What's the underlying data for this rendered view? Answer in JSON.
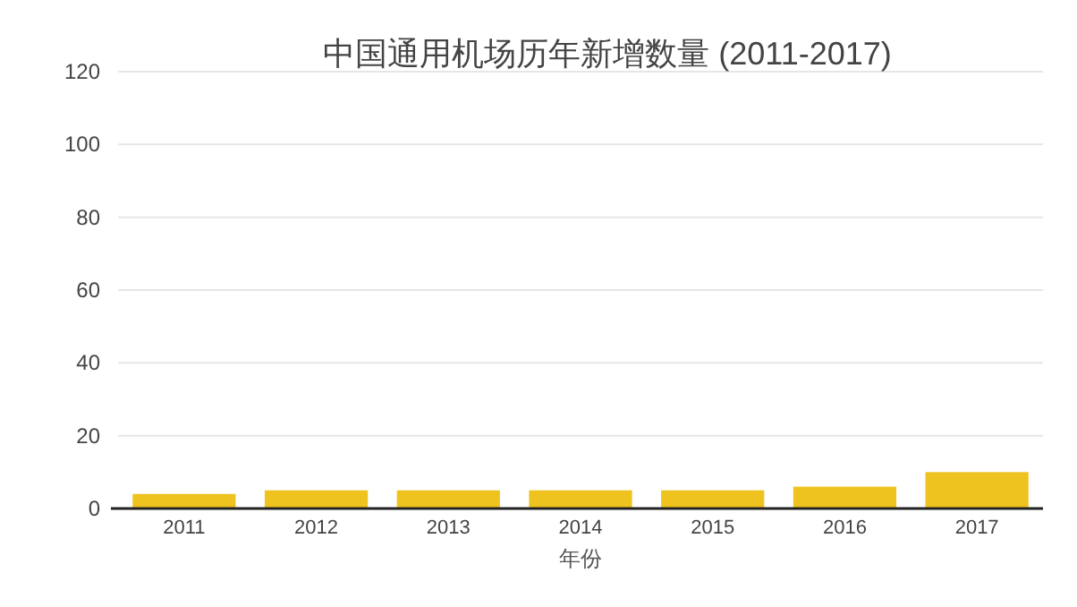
{
  "chart_data": {
    "type": "bar",
    "title": "中国通用机场历年新增数量 (2011-2017)",
    "xlabel": "年份",
    "categories": [
      "2011",
      "2012",
      "2013",
      "2014",
      "2015",
      "2016",
      "2017"
    ],
    "values": [
      4,
      5,
      5,
      5,
      5,
      6,
      10
    ],
    "color": "#efc31f",
    "ylim": [
      0,
      120
    ],
    "yticks": [
      0,
      20,
      40,
      60,
      80,
      100,
      120
    ],
    "grid": "y"
  }
}
